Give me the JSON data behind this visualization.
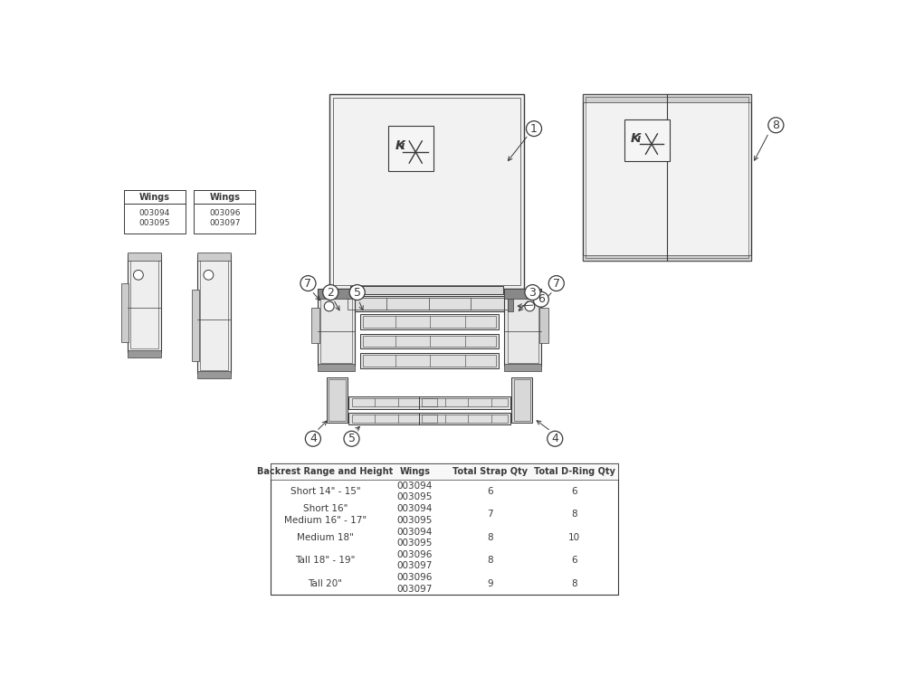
{
  "bg_color": "#ffffff",
  "line_color": "#3a3a3a",
  "table": {
    "headers": [
      "Backrest Range and Height",
      "Wings",
      "Total Strap Qty",
      "Total D-Ring Qty"
    ],
    "rows": [
      [
        "Short 14\" - 15\"",
        "003094\n003095",
        "6",
        "6"
      ],
      [
        "Short 16\"\nMedium 16\" - 17\"",
        "003094\n003095",
        "7",
        "8"
      ],
      [
        "Medium 18\"",
        "003094\n003095",
        "8",
        "10"
      ],
      [
        "Tall 18\" - 19\"",
        "003096\n003097",
        "8",
        "6"
      ],
      [
        "Tall 20\"",
        "003096\n003097",
        "9",
        "8"
      ]
    ]
  }
}
